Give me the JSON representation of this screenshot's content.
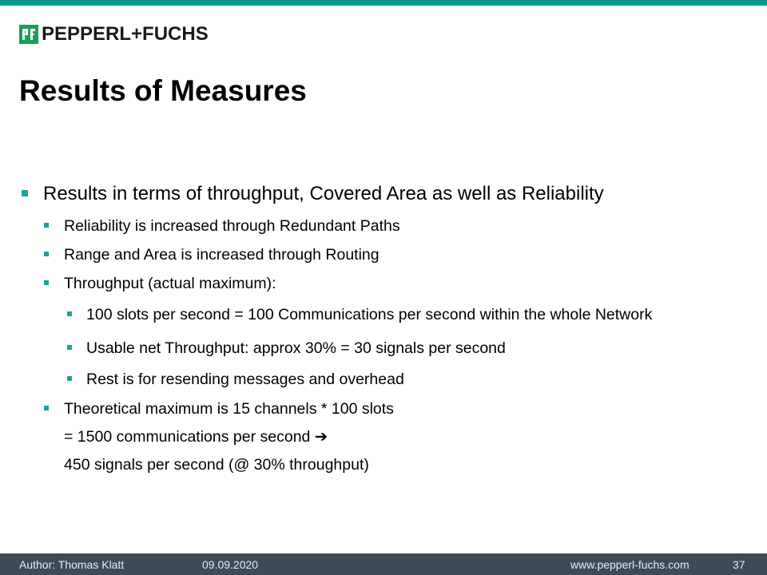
{
  "brand": {
    "logo_mark": "P+F",
    "name": "PEPPERL+FUCHS",
    "accent_color": "#0e9a8a",
    "bullet_color": "#1aa39a",
    "logo_color": "#1a9e5c"
  },
  "slide": {
    "title": "Results of Measures",
    "bullets": [
      "Results in terms of throughput, Covered Area as well as Reliability",
      "Reliability is increased through Redundant Paths",
      "Range and Area is increased through Routing",
      "Throughput (actual maximum):",
      "100 slots per second = 100 Communications per second within the whole Network",
      "Usable net Throughput: approx 30% = 30 signals per second",
      "Rest is for resending messages and overhead",
      "Theoretical maximum is 15 channels * 100 slots",
      "= 1500 communications per second ➔",
      "450 signals per second (@ 30% throughput)"
    ]
  },
  "footer": {
    "author": "Author: Thomas Klatt",
    "date": "09.09.2020",
    "website": "www.pepperl-fuchs.com",
    "page_number": "37",
    "background": "#3d4b57"
  }
}
